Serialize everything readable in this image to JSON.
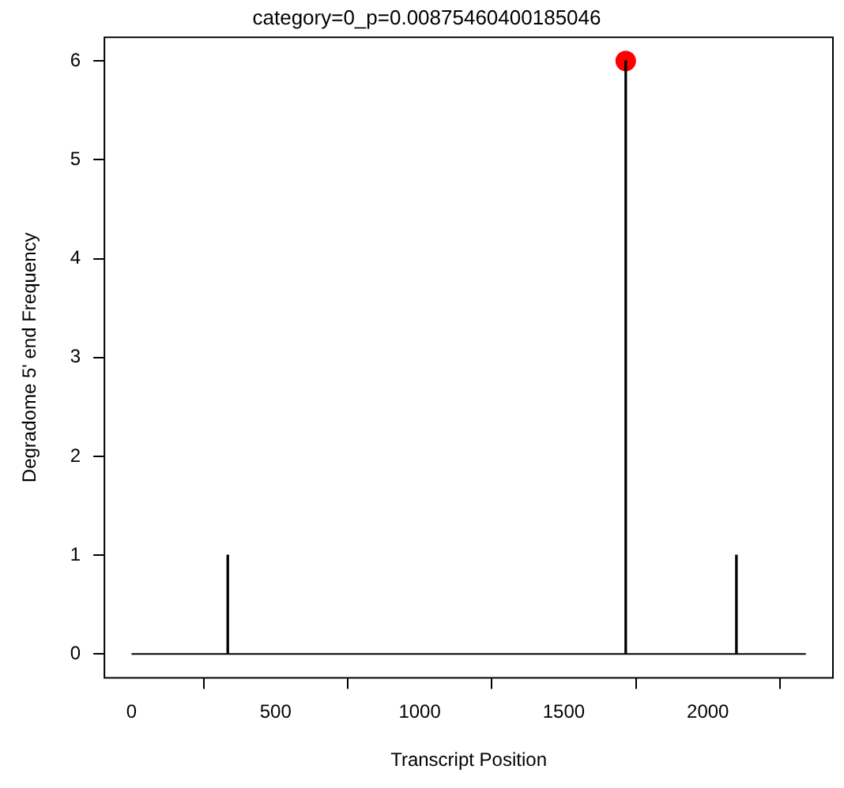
{
  "chart_data": {
    "type": "bar",
    "title": "category=0_p=0.00875460400185046",
    "xlabel": "Transcript Position",
    "ylabel": "Degradome 5' end Frequency",
    "xlim": [
      -94,
      2434
    ],
    "xticks": [
      0,
      500,
      1000,
      1500,
      2000
    ],
    "ylim": [
      -0.24,
      6.24
    ],
    "yticks": [
      0,
      1,
      2,
      3,
      4,
      5,
      6
    ],
    "grid": false,
    "legend": false,
    "series": [
      {
        "type": "line",
        "color": "#000000",
        "x": [
          0,
          2340
        ],
        "values": [
          0,
          0
        ],
        "marker": "none"
      },
      {
        "color": "#000000",
        "x": [
          334,
          1715,
          2099
        ],
        "values": [
          1,
          6,
          1
        ]
      },
      {
        "type": "scatter",
        "color": "#ff0000",
        "x": [
          1715
        ],
        "values": [
          6
        ],
        "marker": "circle"
      }
    ]
  }
}
